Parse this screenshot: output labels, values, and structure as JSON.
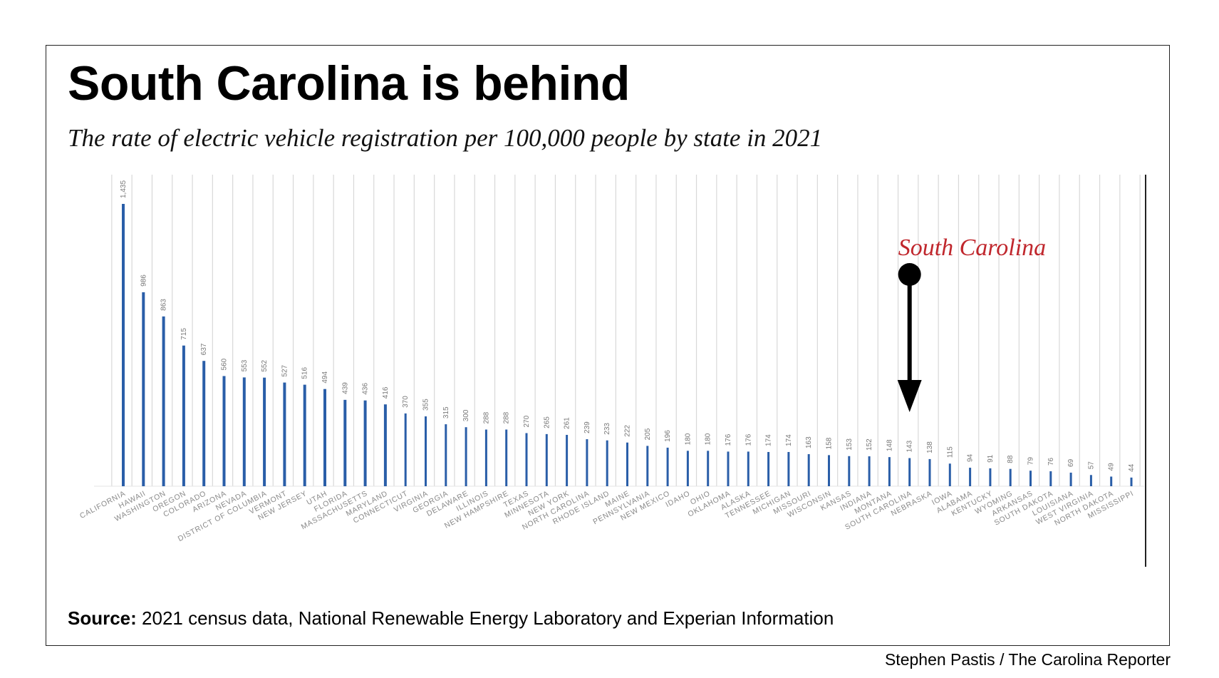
{
  "title": "South Carolina is behind",
  "subtitle": "The rate of electric vehicle registration per 100,000 people by state in 2021",
  "source_label": "Source:",
  "source_text": " 2021 census data, National Renewable Energy Laboratory and Experian Information",
  "credit": "Stephen Pastis / The Carolina Reporter",
  "chart_data": {
    "type": "bar",
    "title": "South Carolina is behind",
    "subtitle": "The rate of electric vehicle registration per 100,000 people by state in 2021",
    "categories": [
      "CALIFORNIA",
      "HAWAII",
      "WASHINGTON",
      "OREGON",
      "COLORADO",
      "ARIZONA",
      "NEVADA",
      "DISTRICT OF COLUMBIA",
      "VERMONT",
      "NEW JERSEY",
      "UTAH",
      "FLORIDA",
      "MASSACHUSETTS",
      "MARYLAND",
      "CONNECTICUT",
      "VIRGINIA",
      "GEORGIA",
      "DELAWARE",
      "ILLINOIS",
      "NEW HAMPSHIRE",
      "TEXAS",
      "MINNESOTA",
      "NEW YORK",
      "NORTH CAROLINA",
      "RHODE ISLAND",
      "MAINE",
      "PENNSYLVANIA",
      "NEW MEXICO",
      "IDAHO",
      "OHIO",
      "OKLAHOMA",
      "ALASKA",
      "TENNESSEE",
      "MICHIGAN",
      "MISSOURI",
      "WISCONSIN",
      "KANSAS",
      "INDIANA",
      "MONTANA",
      "SOUTH CAROLINA",
      "NEBRASKA",
      "IOWA",
      "ALABAMA",
      "KENTUCKY",
      "WYOMING",
      "ARKANSAS",
      "SOUTH DAKOTA",
      "LOUISIANA",
      "WEST VIRGINIA",
      "NORTH DAKOTA",
      "MISSISSIPPI"
    ],
    "values": [
      1435,
      986,
      863,
      715,
      637,
      560,
      553,
      552,
      527,
      516,
      494,
      439,
      436,
      416,
      370,
      355,
      315,
      300,
      288,
      288,
      270,
      265,
      261,
      239,
      233,
      222,
      205,
      196,
      180,
      180,
      176,
      176,
      174,
      174,
      163,
      158,
      153,
      152,
      148,
      143,
      138,
      115,
      94,
      91,
      88,
      79,
      76,
      69,
      57,
      49,
      44
    ],
    "value_labels": [
      "1,435",
      "986",
      "863",
      "715",
      "637",
      "560",
      "553",
      "552",
      "527",
      "516",
      "494",
      "439",
      "436",
      "416",
      "370",
      "355",
      "315",
      "300",
      "288",
      "288",
      "270",
      "265",
      "261",
      "239",
      "233",
      "222",
      "205",
      "196",
      "180",
      "180",
      "176",
      "176",
      "174",
      "174",
      "163",
      "158",
      "153",
      "152",
      "148",
      "143",
      "138",
      "115",
      "94",
      "91",
      "88",
      "79",
      "76",
      "69",
      "57",
      "49",
      "44"
    ],
    "ylim": [
      0,
      1450
    ],
    "grid": "vertical lines between categories",
    "bar_color": "#2a5ea8",
    "annotation": {
      "text": "South Carolina",
      "target": "SOUTH CAROLINA",
      "color": "#c0272d",
      "arrow_color": "#000000"
    }
  }
}
